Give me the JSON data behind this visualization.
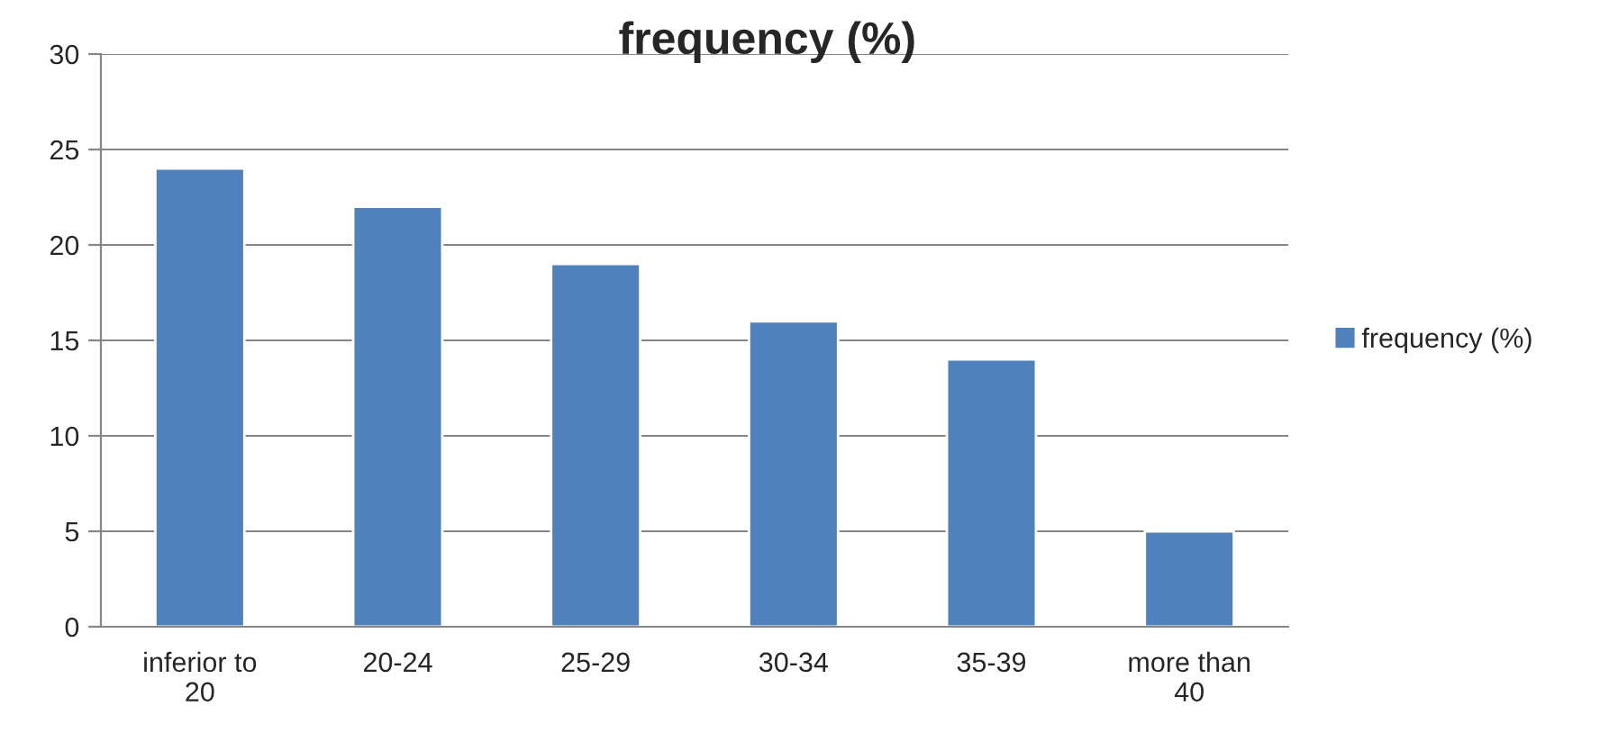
{
  "chart_data": {
    "type": "bar",
    "title": "frequency (%)",
    "categories": [
      "inferior to 20",
      "20-24",
      "25-29",
      "30-34",
      "35-39",
      "more than 40"
    ],
    "series": [
      {
        "name": "frequency (%)",
        "color": "#4f81bd",
        "values": [
          24,
          22,
          19,
          16,
          14,
          5
        ]
      }
    ],
    "ylim": [
      0,
      30
    ],
    "yticks": [
      0,
      5,
      10,
      15,
      20,
      25,
      30
    ],
    "grid": "y",
    "legend": "right"
  }
}
